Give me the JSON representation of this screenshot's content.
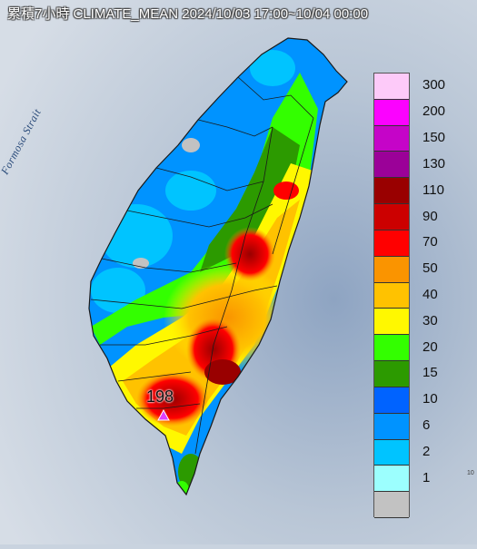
{
  "title": "累積7小時 CLIMATE_MEAN 2024/10/03 17:00~10/04 00:00",
  "strait_label": "Formosa Strait",
  "peak_value": "198",
  "corner_mark": "10",
  "legend": {
    "items": [
      {
        "label": "300",
        "color": "#fdcaf9"
      },
      {
        "label": "200",
        "color": "#fb02ff"
      },
      {
        "label": "150",
        "color": "#c504c8"
      },
      {
        "label": "130",
        "color": "#9b0198"
      },
      {
        "label": "110",
        "color": "#990000"
      },
      {
        "label": "90",
        "color": "#cc0000"
      },
      {
        "label": "70",
        "color": "#ff0000"
      },
      {
        "label": "50",
        "color": "#fa9400"
      },
      {
        "label": "40",
        "color": "#ffc200"
      },
      {
        "label": "30",
        "color": "#fff800"
      },
      {
        "label": "20",
        "color": "#33ff00"
      },
      {
        "label": "15",
        "color": "#2c9a00"
      },
      {
        "label": "10",
        "color": "#0063ff"
      },
      {
        "label": "6",
        "color": "#0093ff"
      },
      {
        "label": "2",
        "color": "#00c4ff"
      },
      {
        "label": "1",
        "color": "#9cfffe"
      },
      {
        "label": "",
        "color": "#c2c2c2"
      }
    ]
  }
}
